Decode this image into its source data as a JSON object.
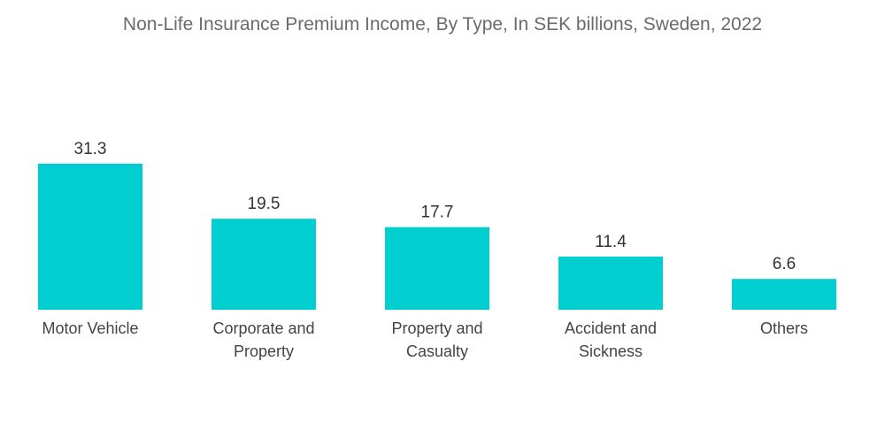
{
  "chart_data": {
    "type": "bar",
    "title": "Non-Life Insurance Premium Income, By Type, In SEK billions, Sweden, 2022",
    "categories": [
      [
        "Motor Vehicle"
      ],
      [
        "Corporate and",
        "Property"
      ],
      [
        "Property and",
        "Casualty"
      ],
      [
        "Accident and",
        "Sickness"
      ],
      [
        "Others"
      ]
    ],
    "category_names": [
      "Motor Vehicle",
      "Corporate and Property",
      "Property and Casualty",
      "Accident and Sickness",
      "Others"
    ],
    "values": [
      31.3,
      19.5,
      17.7,
      11.4,
      6.6
    ],
    "value_labels": [
      "31.3",
      "19.5",
      "17.7",
      "11.4",
      "6.6"
    ],
    "bar_color": "#00CED1",
    "xlabel": "",
    "ylabel": "",
    "ylim": [
      0,
      31.3
    ],
    "grid": false,
    "legend": "none"
  }
}
